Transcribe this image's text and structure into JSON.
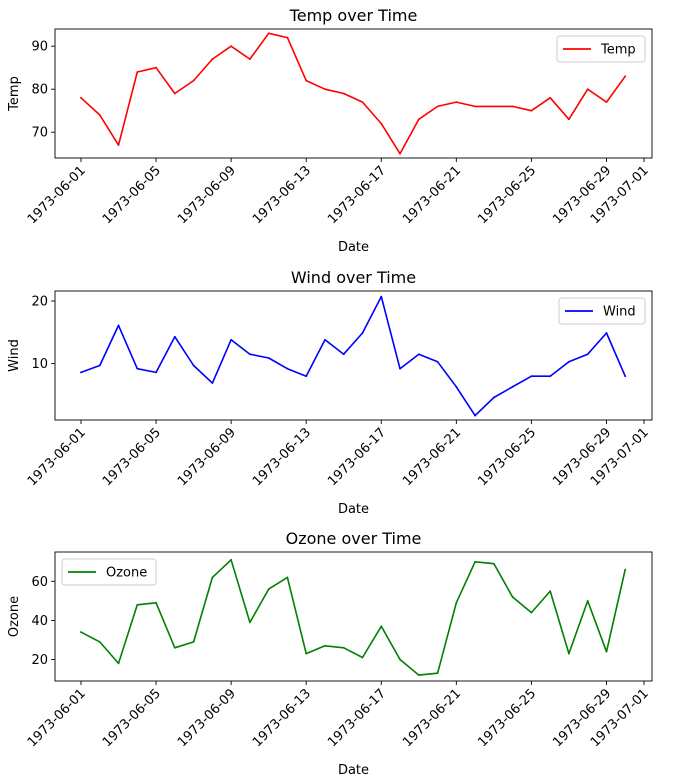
{
  "chart_data": [
    {
      "type": "line",
      "title": "Temp over Time",
      "xlabel": "Date",
      "ylabel": "Temp",
      "ylim": [
        64,
        94
      ],
      "yticks": [
        70,
        80,
        90
      ],
      "xticks": [
        "1973-06-01",
        "1973-06-05",
        "1973-06-09",
        "1973-06-13",
        "1973-06-17",
        "1973-06-21",
        "1973-06-25",
        "1973-06-29",
        "1973-07-01"
      ],
      "legend_position": "upper-right",
      "grid": false,
      "x": [
        "1973-06-01",
        "1973-06-02",
        "1973-06-03",
        "1973-06-04",
        "1973-06-05",
        "1973-06-06",
        "1973-06-07",
        "1973-06-08",
        "1973-06-09",
        "1973-06-10",
        "1973-06-11",
        "1973-06-12",
        "1973-06-13",
        "1973-06-14",
        "1973-06-15",
        "1973-06-16",
        "1973-06-17",
        "1973-06-18",
        "1973-06-19",
        "1973-06-20",
        "1973-06-21",
        "1973-06-22",
        "1973-06-23",
        "1973-06-24",
        "1973-06-25",
        "1973-06-26",
        "1973-06-27",
        "1973-06-28",
        "1973-06-29",
        "1973-06-30"
      ],
      "series": [
        {
          "name": "Temp",
          "color": "#ff0000",
          "values": [
            78,
            74,
            67,
            84,
            85,
            79,
            82,
            87,
            90,
            87,
            93,
            92,
            82,
            80,
            79,
            77,
            72,
            65,
            73,
            76,
            77,
            76,
            76,
            76,
            75,
            78,
            73,
            80,
            77,
            83
          ]
        }
      ]
    },
    {
      "type": "line",
      "title": "Wind over Time",
      "xlabel": "Date",
      "ylabel": "Wind",
      "ylim": [
        1.0,
        21.6
      ],
      "yticks": [
        10,
        20
      ],
      "xticks": [
        "1973-06-01",
        "1973-06-05",
        "1973-06-09",
        "1973-06-13",
        "1973-06-17",
        "1973-06-21",
        "1973-06-25",
        "1973-06-29",
        "1973-07-01"
      ],
      "legend_position": "upper-right",
      "grid": false,
      "x": [
        "1973-06-01",
        "1973-06-02",
        "1973-06-03",
        "1973-06-04",
        "1973-06-05",
        "1973-06-06",
        "1973-06-07",
        "1973-06-08",
        "1973-06-09",
        "1973-06-10",
        "1973-06-11",
        "1973-06-12",
        "1973-06-13",
        "1973-06-14",
        "1973-06-15",
        "1973-06-16",
        "1973-06-17",
        "1973-06-18",
        "1973-06-19",
        "1973-06-20",
        "1973-06-21",
        "1973-06-22",
        "1973-06-23",
        "1973-06-24",
        "1973-06-25",
        "1973-06-26",
        "1973-06-27",
        "1973-06-28",
        "1973-06-29",
        "1973-06-30"
      ],
      "series": [
        {
          "name": "Wind",
          "color": "#0000ff",
          "values": [
            8.6,
            9.7,
            16.1,
            9.2,
            8.6,
            14.3,
            9.7,
            6.9,
            13.8,
            11.5,
            10.9,
            9.2,
            8.0,
            13.8,
            11.5,
            14.9,
            20.7,
            9.2,
            11.5,
            10.3,
            6.3,
            1.7,
            4.6,
            6.3,
            8.0,
            8.0,
            10.3,
            11.5,
            14.9,
            8.0
          ]
        }
      ]
    },
    {
      "type": "line",
      "title": "Ozone over Time",
      "xlabel": "Date",
      "ylabel": "Ozone",
      "ylim": [
        9,
        75
      ],
      "yticks": [
        20,
        40,
        60
      ],
      "xticks": [
        "1973-06-01",
        "1973-06-05",
        "1973-06-09",
        "1973-06-13",
        "1973-06-17",
        "1973-06-21",
        "1973-06-25",
        "1973-06-29",
        "1973-07-01"
      ],
      "legend_position": "upper-left",
      "grid": false,
      "x": [
        "1973-06-01",
        "1973-06-02",
        "1973-06-03",
        "1973-06-04",
        "1973-06-05",
        "1973-06-06",
        "1973-06-07",
        "1973-06-08",
        "1973-06-09",
        "1973-06-10",
        "1973-06-11",
        "1973-06-12",
        "1973-06-13",
        "1973-06-14",
        "1973-06-15",
        "1973-06-16",
        "1973-06-17",
        "1973-06-18",
        "1973-06-19",
        "1973-06-20",
        "1973-06-21",
        "1973-06-22",
        "1973-06-23",
        "1973-06-24",
        "1973-06-25",
        "1973-06-26",
        "1973-06-27",
        "1973-06-28",
        "1973-06-29",
        "1973-06-30"
      ],
      "series": [
        {
          "name": "Ozone",
          "color": "#008000",
          "values": [
            34,
            29,
            18,
            48,
            49,
            26,
            29,
            62,
            71,
            39,
            56,
            62,
            23,
            27,
            26,
            21,
            37,
            20,
            12,
            13,
            49,
            70,
            69,
            52,
            44,
            55,
            23,
            50,
            24,
            66
          ]
        }
      ]
    }
  ]
}
